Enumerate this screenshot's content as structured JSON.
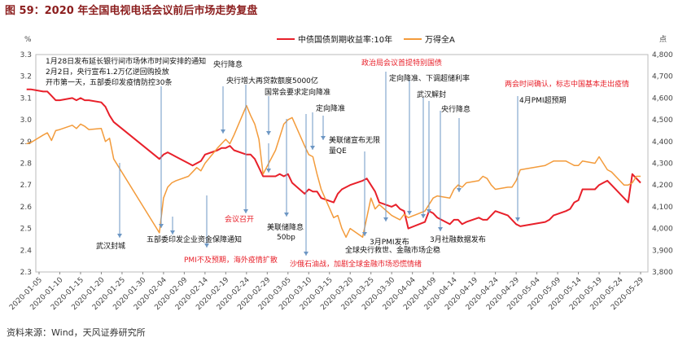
{
  "title": "图 59：2020 年全国电视电话会议前后市场走势复盘",
  "source": "资料来源：Wind，天风证券研究所",
  "chart_data": {
    "type": "line",
    "y_left_label": "%",
    "y_right_label": "点",
    "y_left_ticks": [
      "3.3",
      "3.2",
      "3.1",
      "3.0",
      "2.9",
      "2.8",
      "2.7",
      "2.6",
      "2.5",
      "2.4",
      "2.3"
    ],
    "y_right_ticks": [
      "4,800",
      "4,700",
      "4,600",
      "4,500",
      "4,400",
      "4,300",
      "4,200",
      "4,100",
      "4,000",
      "3,900",
      "3,800"
    ],
    "ylim_left": [
      2.3,
      3.3
    ],
    "ylim_right": [
      3800,
      4800
    ],
    "x_ticks": [
      "2020-01-05",
      "2020-01-10",
      "2020-01-15",
      "2020-01-20",
      "2020-01-25",
      "2020-01-30",
      "2020-02-04",
      "2020-02-09",
      "2020-02-14",
      "2020-02-19",
      "2020-02-24",
      "2020-02-29",
      "2020-03-05",
      "2020-03-10",
      "2020-03-15",
      "2020-03-20",
      "2020-03-25",
      "2020-03-30",
      "2020-04-04",
      "2020-04-09",
      "2020-04-14",
      "2020-04-19",
      "2020-04-24",
      "2020-04-29",
      "2020-05-04",
      "2020-05-09",
      "2020-05-14",
      "2020-05-19",
      "2020-05-24",
      "2020-05-29"
    ],
    "series": [
      {
        "name": "中债国债到期收益率:10年",
        "color": "#e8202a",
        "axis": "left",
        "x": [
          "2020-01-02",
          "2020-01-03",
          "2020-01-06",
          "2020-01-07",
          "2020-01-08",
          "2020-01-09",
          "2020-01-10",
          "2020-01-13",
          "2020-01-14",
          "2020-01-15",
          "2020-01-16",
          "2020-01-17",
          "2020-01-20",
          "2020-01-21",
          "2020-01-22",
          "2020-01-23",
          "2020-02-03",
          "2020-02-04",
          "2020-02-05",
          "2020-02-06",
          "2020-02-07",
          "2020-02-10",
          "2020-02-11",
          "2020-02-12",
          "2020-02-13",
          "2020-02-14",
          "2020-02-17",
          "2020-02-18",
          "2020-02-19",
          "2020-02-20",
          "2020-02-21",
          "2020-02-24",
          "2020-02-25",
          "2020-02-26",
          "2020-02-27",
          "2020-02-28",
          "2020-03-02",
          "2020-03-03",
          "2020-03-04",
          "2020-03-05",
          "2020-03-06",
          "2020-03-09",
          "2020-03-10",
          "2020-03-11",
          "2020-03-12",
          "2020-03-13",
          "2020-03-16",
          "2020-03-17",
          "2020-03-18",
          "2020-03-19",
          "2020-03-20",
          "2020-03-23",
          "2020-03-24",
          "2020-03-25",
          "2020-03-26",
          "2020-03-27",
          "2020-03-30",
          "2020-03-31",
          "2020-04-01",
          "2020-04-02",
          "2020-04-03",
          "2020-04-07",
          "2020-04-08",
          "2020-04-09",
          "2020-04-10",
          "2020-04-13",
          "2020-04-14",
          "2020-04-15",
          "2020-04-16",
          "2020-04-17",
          "2020-04-20",
          "2020-04-21",
          "2020-04-22",
          "2020-04-23",
          "2020-04-24",
          "2020-04-27",
          "2020-04-28",
          "2020-04-29",
          "2020-04-30",
          "2020-05-06",
          "2020-05-07",
          "2020-05-08",
          "2020-05-11",
          "2020-05-12",
          "2020-05-13",
          "2020-05-14",
          "2020-05-15",
          "2020-05-18",
          "2020-05-19",
          "2020-05-20",
          "2020-05-21",
          "2020-05-22",
          "2020-05-25",
          "2020-05-26",
          "2020-05-27",
          "2020-05-28",
          "2020-05-29"
        ],
        "values": [
          3.14,
          3.14,
          3.13,
          3.13,
          3.11,
          3.09,
          3.09,
          3.1,
          3.09,
          3.1,
          3.09,
          3.09,
          3.08,
          3.06,
          3.02,
          2.99,
          2.82,
          2.84,
          2.85,
          2.84,
          2.83,
          2.8,
          2.79,
          2.8,
          2.81,
          2.84,
          2.86,
          2.87,
          2.87,
          2.88,
          2.86,
          2.84,
          2.84,
          2.82,
          2.78,
          2.74,
          2.74,
          2.75,
          2.74,
          2.75,
          2.71,
          2.66,
          2.68,
          2.67,
          2.67,
          2.64,
          2.62,
          2.66,
          2.68,
          2.69,
          2.7,
          2.72,
          2.73,
          2.7,
          2.67,
          2.62,
          2.6,
          2.61,
          2.59,
          2.58,
          2.5,
          2.53,
          2.58,
          2.57,
          2.55,
          2.52,
          2.54,
          2.54,
          2.52,
          2.53,
          2.55,
          2.54,
          2.54,
          2.56,
          2.58,
          2.56,
          2.54,
          2.52,
          2.51,
          2.53,
          2.54,
          2.56,
          2.58,
          2.59,
          2.62,
          2.63,
          2.68,
          2.68,
          2.7,
          2.71,
          2.72,
          2.7,
          2.64,
          2.62,
          2.75,
          2.73,
          2.71
        ]
      },
      {
        "name": "万得全A",
        "color": "#f39b3b",
        "axis": "right",
        "x": [
          "2020-01-02",
          "2020-01-03",
          "2020-01-06",
          "2020-01-07",
          "2020-01-08",
          "2020-01-09",
          "2020-01-10",
          "2020-01-13",
          "2020-01-14",
          "2020-01-15",
          "2020-01-16",
          "2020-01-17",
          "2020-01-20",
          "2020-01-21",
          "2020-01-22",
          "2020-01-23",
          "2020-02-03",
          "2020-02-04",
          "2020-02-05",
          "2020-02-06",
          "2020-02-07",
          "2020-02-10",
          "2020-02-11",
          "2020-02-12",
          "2020-02-13",
          "2020-02-14",
          "2020-02-17",
          "2020-02-18",
          "2020-02-19",
          "2020-02-20",
          "2020-02-21",
          "2020-02-24",
          "2020-02-25",
          "2020-02-26",
          "2020-02-27",
          "2020-02-28",
          "2020-03-02",
          "2020-03-03",
          "2020-03-04",
          "2020-03-05",
          "2020-03-06",
          "2020-03-09",
          "2020-03-10",
          "2020-03-11",
          "2020-03-12",
          "2020-03-13",
          "2020-03-16",
          "2020-03-17",
          "2020-03-18",
          "2020-03-19",
          "2020-03-20",
          "2020-03-23",
          "2020-03-24",
          "2020-03-25",
          "2020-03-26",
          "2020-03-27",
          "2020-03-30",
          "2020-03-31",
          "2020-04-01",
          "2020-04-02",
          "2020-04-03",
          "2020-04-07",
          "2020-04-08",
          "2020-04-09",
          "2020-04-10",
          "2020-04-13",
          "2020-04-14",
          "2020-04-15",
          "2020-04-16",
          "2020-04-17",
          "2020-04-20",
          "2020-04-21",
          "2020-04-22",
          "2020-04-23",
          "2020-04-24",
          "2020-04-27",
          "2020-04-28",
          "2020-04-29",
          "2020-04-30",
          "2020-05-06",
          "2020-05-07",
          "2020-05-08",
          "2020-05-11",
          "2020-05-12",
          "2020-05-13",
          "2020-05-14",
          "2020-05-15",
          "2020-05-18",
          "2020-05-19",
          "2020-05-20",
          "2020-05-21",
          "2020-05-22",
          "2020-05-25",
          "2020-05-26",
          "2020-05-27",
          "2020-05-28",
          "2020-05-29"
        ],
        "values": [
          4390,
          4395,
          4430,
          4440,
          4405,
          4450,
          4455,
          4475,
          4460,
          4480,
          4470,
          4455,
          4460,
          4400,
          4415,
          4320,
          3980,
          4140,
          4190,
          4210,
          4220,
          4240,
          4260,
          4280,
          4265,
          4300,
          4370,
          4390,
          4410,
          4390,
          4430,
          4565,
          4520,
          4480,
          4410,
          4250,
          4360,
          4420,
          4480,
          4500,
          4510,
          4380,
          4340,
          4330,
          4250,
          4180,
          4050,
          4060,
          4000,
          3960,
          4000,
          3960,
          4050,
          4140,
          4090,
          4110,
          4060,
          4050,
          4040,
          4065,
          4050,
          4080,
          4110,
          4140,
          4150,
          4140,
          4180,
          4200,
          4190,
          4210,
          4220,
          4240,
          4230,
          4200,
          4180,
          4190,
          4190,
          4220,
          4270,
          4290,
          4300,
          4310,
          4310,
          4300,
          4290,
          4290,
          4310,
          4300,
          4330,
          4300,
          4270,
          4260,
          4200,
          4200,
          4210,
          4240,
          4240
        ]
      }
    ],
    "annotations": [
      {
        "text": "1月28日发布延长银行间市场休市时间安排的通知",
        "color": "black"
      },
      {
        "text": "2月2日，央行宣布1.2万亿逆回购投放",
        "color": "black"
      },
      {
        "text": "开市第一天，五部委印发疫情防控30条",
        "color": "black"
      },
      {
        "text": "央行降息",
        "color": "black"
      },
      {
        "text": "央行增大再贷款额度5000亿",
        "color": "black"
      },
      {
        "text": "国常会要求定向降准",
        "color": "black"
      },
      {
        "text": "定向降准",
        "color": "black"
      },
      {
        "text": "美联储宣布无限",
        "color": "black"
      },
      {
        "text": "量QE",
        "color": "black"
      },
      {
        "text": "政治局会议首提特别国债",
        "color": "red"
      },
      {
        "text": "定向降准、下调超储利率",
        "color": "black"
      },
      {
        "text": "武汉解封",
        "color": "black"
      },
      {
        "text": "央行降息",
        "color": "black"
      },
      {
        "text": "两会时间确认，标志中国基本走出疫情",
        "color": "red"
      },
      {
        "text": "4月PMI超预期",
        "color": "black"
      },
      {
        "text": "武汉封城",
        "color": "black"
      },
      {
        "text": "五部委印发企业资金保障通知",
        "color": "black"
      },
      {
        "text": "会议召开",
        "color": "red"
      },
      {
        "text": "美联储降息",
        "color": "black"
      },
      {
        "text": "50bp",
        "color": "black"
      },
      {
        "text": "PMI不及预期，海外疫情扩散",
        "color": "red"
      },
      {
        "text": "沙俄石油战，加剧全球金融市场恐慌情绪",
        "color": "red"
      },
      {
        "text": "3月PMI发布",
        "color": "black"
      },
      {
        "text": "全球央行救世、金融市场企稳",
        "color": "black"
      },
      {
        "text": "3月社融数据发布",
        "color": "black"
      }
    ]
  }
}
